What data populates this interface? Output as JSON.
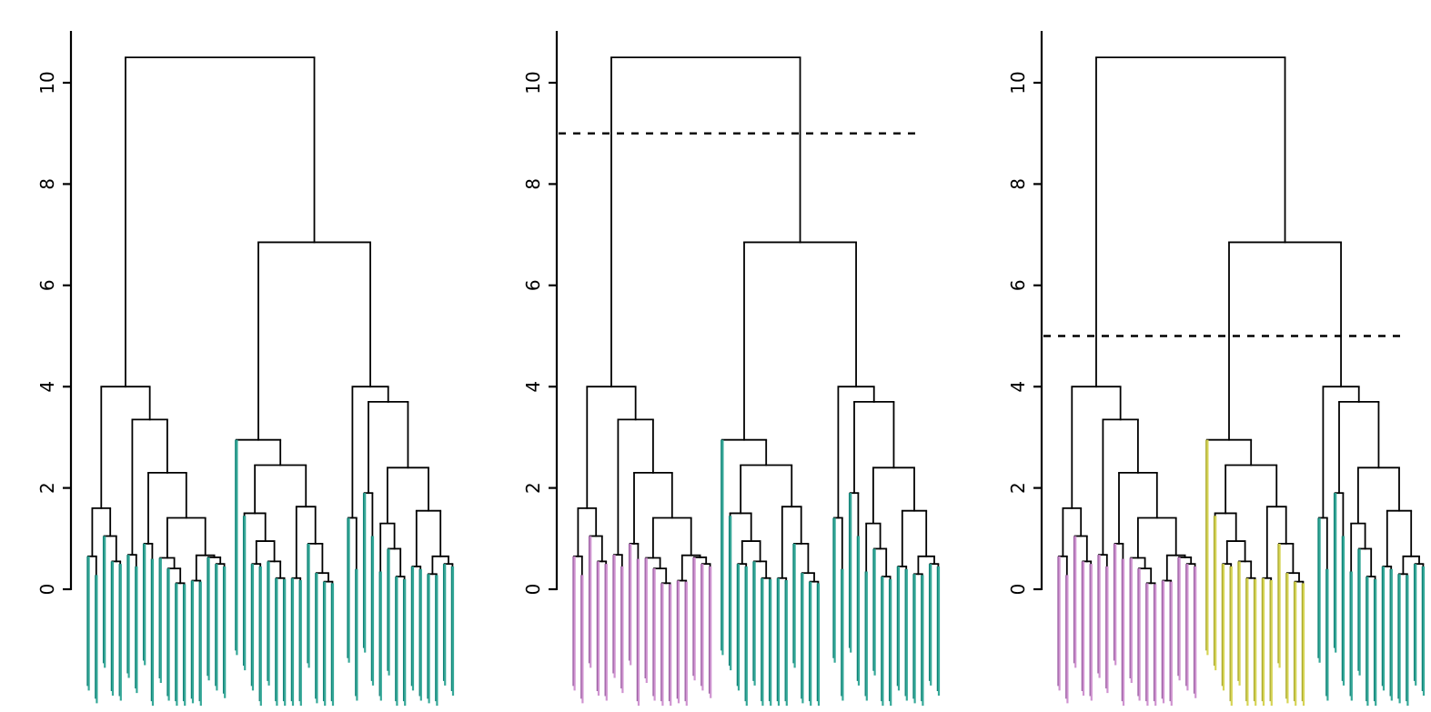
{
  "page": {
    "background": "#ffffff"
  },
  "chart_data": {
    "type": "dendrogram",
    "title": "",
    "n_leaves": 45,
    "y_axis": {
      "ticks": [
        0,
        2,
        4,
        6,
        8,
        10
      ],
      "range": [
        0,
        10.5
      ]
    },
    "grid": false,
    "legend": null,
    "colors": {
      "branch": "#000000",
      "cut_line": "#000000",
      "teal": {
        "dark": "#0e8276",
        "light": "#35a898"
      },
      "purple": {
        "dark": "#9c5fa3",
        "light": "#cf93d0"
      },
      "yellow": {
        "dark": "#aaa92e",
        "light": "#d6d455"
      }
    },
    "panels": [
      {
        "id": "dendrogram-1",
        "cut_height": null,
        "clusters": [
          {
            "range": [
              0,
              44
            ],
            "color": "teal"
          }
        ]
      },
      {
        "id": "dendrogram-2",
        "cut_height": 9,
        "clusters": [
          {
            "range": [
              0,
              17
            ],
            "color": "purple"
          },
          {
            "range": [
              18,
              44
            ],
            "color": "teal"
          }
        ]
      },
      {
        "id": "dendrogram-3",
        "cut_height": 5,
        "clusters": [
          {
            "range": [
              0,
              17
            ],
            "color": "purple"
          },
          {
            "range": [
              18,
              30
            ],
            "color": "yellow"
          },
          {
            "range": [
              31,
              44
            ],
            "color": "teal"
          }
        ]
      }
    ],
    "cluster_breaks": [
      18,
      31
    ],
    "tree": {
      "h": 10.5,
      "c": [
        {
          "h": 4.0,
          "c": [
            {
              "h": 1.6,
              "c": [
                {
                  "h": 0.65,
                  "c": [
                    {
                      "i": 0,
                      "a": 0.65,
                      "t": -2.0
                    },
                    {
                      "i": 1,
                      "a": 0.28,
                      "t": -2.25
                    }
                  ]
                },
                {
                  "h": 1.05,
                  "c": [
                    {
                      "i": 2,
                      "a": 1.05,
                      "t": -1.55
                    },
                    {
                      "h": 0.55,
                      "c": [
                        {
                          "i": 3,
                          "a": 0.55,
                          "t": -2.1
                        },
                        {
                          "i": 4,
                          "a": 0.5,
                          "t": -2.2
                        }
                      ]
                    }
                  ]
                }
              ]
            },
            {
              "h": 3.35,
              "c": [
                {
                  "h": 0.68,
                  "c": [
                    {
                      "i": 5,
                      "a": 0.68,
                      "t": -1.75
                    },
                    {
                      "i": 6,
                      "a": 0.45,
                      "t": -2.05
                    }
                  ]
                },
                {
                  "h": 2.3,
                  "c": [
                    {
                      "h": 0.9,
                      "c": [
                        {
                          "i": 7,
                          "a": 0.9,
                          "t": -1.5
                        },
                        {
                          "i": 8,
                          "a": 0.6,
                          "t": -2.3
                        }
                      ]
                    },
                    {
                      "h": 1.41,
                      "c": [
                        {
                          "h": 0.62,
                          "c": [
                            {
                              "i": 9,
                              "a": 0.62,
                              "t": -1.85
                            },
                            {
                              "h": 0.41,
                              "c": [
                                {
                                  "i": 10,
                                  "a": 0.41,
                                  "t": -2.2
                                },
                                {
                                  "h": 0.12,
                                  "c": [
                                    {
                                      "i": 11,
                                      "a": 0.12,
                                      "t": -2.3
                                    },
                                    {
                                      "i": 12,
                                      "a": 0.1,
                                      "t": -2.3
                                    }
                                  ]
                                }
                              ]
                            }
                          ]
                        },
                        {
                          "h": 0.67,
                          "c": [
                            {
                              "h": 0.17,
                              "c": [
                                {
                                  "i": 13,
                                  "a": 0.17,
                                  "t": -2.25
                                },
                                {
                                  "i": 14,
                                  "a": 0.15,
                                  "t": -2.3
                                }
                              ]
                            },
                            {
                              "h": 0.63,
                              "c": [
                                {
                                  "i": 15,
                                  "a": 0.63,
                                  "t": -1.8
                                },
                                {
                                  "h": 0.5,
                                  "c": [
                                    {
                                      "i": 16,
                                      "a": 0.5,
                                      "t": -2.0
                                    },
                                    {
                                      "i": 17,
                                      "a": 0.45,
                                      "t": -2.15
                                    }
                                  ]
                                }
                              ]
                            }
                          ]
                        }
                      ]
                    }
                  ]
                }
              ]
            }
          ]
        },
        {
          "h": 6.85,
          "c": [
            {
              "h": 2.95,
              "c": [
                {
                  "i": 18,
                  "a": 2.95,
                  "t": -1.3
                },
                {
                  "h": 2.45,
                  "c": [
                    {
                      "h": 1.5,
                      "c": [
                        {
                          "i": 19,
                          "a": 1.45,
                          "t": -1.6
                        },
                        {
                          "h": 0.95,
                          "c": [
                            {
                              "h": 0.5,
                              "c": [
                                {
                                  "i": 20,
                                  "a": 0.5,
                                  "t": -2.0
                                },
                                {
                                  "i": 21,
                                  "a": 0.45,
                                  "t": -2.3
                                }
                              ]
                            },
                            {
                              "h": 0.55,
                              "c": [
                                {
                                  "i": 22,
                                  "a": 0.55,
                                  "t": -1.9
                                },
                                {
                                  "h": 0.22,
                                  "c": [
                                    {
                                      "i": 23,
                                      "a": 0.22,
                                      "t": -2.3
                                    },
                                    {
                                      "i": 24,
                                      "a": 0.2,
                                      "t": -2.3
                                    }
                                  ]
                                }
                              ]
                            }
                          ]
                        }
                      ]
                    },
                    {
                      "h": 1.63,
                      "c": [
                        {
                          "h": 0.22,
                          "c": [
                            {
                              "i": 25,
                              "a": 0.22,
                              "t": -2.3
                            },
                            {
                              "i": 26,
                              "a": 0.18,
                              "t": -2.3
                            }
                          ]
                        },
                        {
                          "h": 0.9,
                          "c": [
                            {
                              "i": 27,
                              "a": 0.9,
                              "t": -1.55
                            },
                            {
                              "h": 0.32,
                              "c": [
                                {
                                  "i": 28,
                                  "a": 0.32,
                                  "t": -2.25
                                },
                                {
                                  "h": 0.15,
                                  "c": [
                                    {
                                      "i": 29,
                                      "a": 0.15,
                                      "t": -2.3
                                    },
                                    {
                                      "i": 30,
                                      "a": 0.12,
                                      "t": -2.3
                                    }
                                  ]
                                }
                              ]
                            }
                          ]
                        }
                      ]
                    }
                  ]
                }
              ]
            },
            {
              "h": 4.0,
              "c": [
                {
                  "h": 1.41,
                  "c": [
                    {
                      "i": 31,
                      "a": 1.41,
                      "t": -1.45
                    },
                    {
                      "i": 32,
                      "a": 0.4,
                      "t": -2.2
                    }
                  ]
                },
                {
                  "h": 3.7,
                  "c": [
                    {
                      "h": 1.9,
                      "c": [
                        {
                          "i": 33,
                          "a": 1.9,
                          "t": -1.25
                        },
                        {
                          "i": 34,
                          "a": 1.05,
                          "t": -1.9
                        }
                      ]
                    },
                    {
                      "h": 2.4,
                      "c": [
                        {
                          "h": 1.3,
                          "c": [
                            {
                              "i": 35,
                              "a": 0.35,
                              "t": -2.2
                            },
                            {
                              "h": 0.8,
                              "c": [
                                {
                                  "i": 36,
                                  "a": 0.8,
                                  "t": -1.7
                                },
                                {
                                  "h": 0.25,
                                  "c": [
                                    {
                                      "i": 37,
                                      "a": 0.25,
                                      "t": -2.3
                                    },
                                    {
                                      "i": 38,
                                      "a": 0.2,
                                      "t": -2.3
                                    }
                                  ]
                                }
                              ]
                            }
                          ]
                        },
                        {
                          "h": 1.55,
                          "c": [
                            {
                              "h": 0.45,
                              "c": [
                                {
                                  "i": 39,
                                  "a": 0.45,
                                  "t": -2.0
                                },
                                {
                                  "i": 40,
                                  "a": 0.4,
                                  "t": -2.2
                                }
                              ]
                            },
                            {
                              "h": 0.65,
                              "c": [
                                {
                                  "h": 0.3,
                                  "c": [
                                    {
                                      "i": 41,
                                      "a": 0.3,
                                      "t": -2.25
                                    },
                                    {
                                      "i": 42,
                                      "a": 0.28,
                                      "t": -2.3
                                    }
                                  ]
                                },
                                {
                                  "h": 0.5,
                                  "c": [
                                    {
                                      "i": 43,
                                      "a": 0.5,
                                      "t": -1.9
                                    },
                                    {
                                      "i": 44,
                                      "a": 0.45,
                                      "t": -2.1
                                    }
                                  ]
                                }
                              ]
                            }
                          ]
                        }
                      ]
                    }
                  ]
                }
              ]
            }
          ]
        }
      ]
    }
  }
}
